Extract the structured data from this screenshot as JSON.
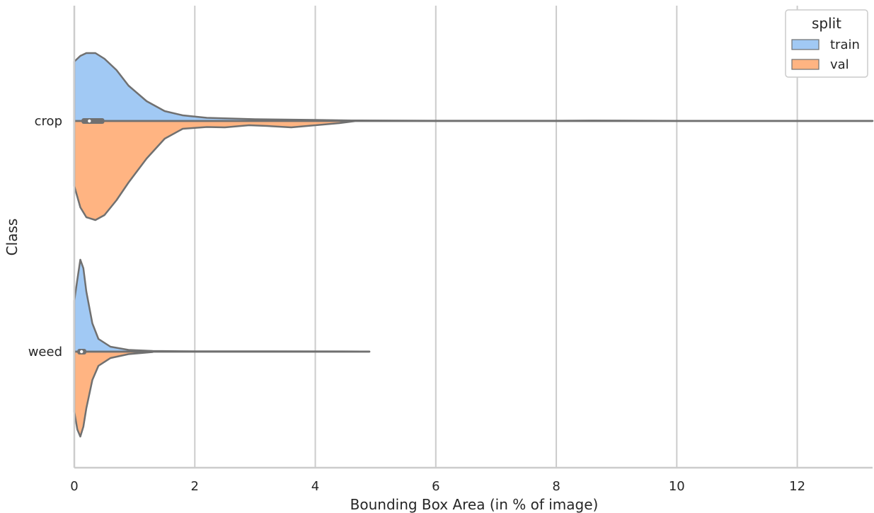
{
  "chart_data": {
    "type": "violin",
    "split_by": "split",
    "xlabel": "Bounding Box Area (in % of image)",
    "ylabel": "Class",
    "xlim": [
      0,
      13.25
    ],
    "xticks": [
      0,
      2,
      4,
      6,
      8,
      10,
      12
    ],
    "grid": "vertical",
    "legend": {
      "title": "split",
      "placement": "top-right",
      "entries": [
        {
          "name": "train",
          "color": "#a1c9f4"
        },
        {
          "name": "val",
          "color": "#ffb482"
        }
      ]
    },
    "categories": [
      "crop",
      "weed"
    ],
    "violins": [
      {
        "category": "crop",
        "train": {
          "min": 0,
          "max": 13.25,
          "q1": 0.12,
          "median": 0.25,
          "q3": 0.5,
          "density": [
            [
              0,
              0.84
            ],
            [
              0.1,
              0.92
            ],
            [
              0.2,
              0.96
            ],
            [
              0.35,
              0.96
            ],
            [
              0.5,
              0.88
            ],
            [
              0.7,
              0.72
            ],
            [
              0.9,
              0.5
            ],
            [
              1.2,
              0.28
            ],
            [
              1.5,
              0.14
            ],
            [
              1.8,
              0.08
            ],
            [
              2.2,
              0.045
            ],
            [
              3,
              0.025
            ],
            [
              4,
              0.015
            ],
            [
              4.6,
              0.008
            ],
            [
              6,
              0.004
            ],
            [
              8,
              0.004
            ],
            [
              8.6,
              0.006
            ],
            [
              10,
              0.003
            ],
            [
              13.25,
              0.002
            ]
          ]
        },
        "val": {
          "min": 0,
          "max": 4.65,
          "density": [
            [
              0,
              0.92
            ],
            [
              0.1,
              1.22
            ],
            [
              0.2,
              1.36
            ],
            [
              0.35,
              1.4
            ],
            [
              0.5,
              1.33
            ],
            [
              0.7,
              1.12
            ],
            [
              0.9,
              0.87
            ],
            [
              1.2,
              0.53
            ],
            [
              1.5,
              0.25
            ],
            [
              1.8,
              0.11
            ],
            [
              2.2,
              0.085
            ],
            [
              2.5,
              0.09
            ],
            [
              2.9,
              0.06
            ],
            [
              3.2,
              0.07
            ],
            [
              3.6,
              0.09
            ],
            [
              4.0,
              0.06
            ],
            [
              4.4,
              0.03
            ],
            [
              4.65,
              0.002
            ]
          ]
        }
      },
      {
        "category": "weed",
        "train": {
          "min": 0,
          "max": 4.9,
          "q1": 0.05,
          "median": 0.12,
          "q3": 0.2,
          "density": [
            [
              0,
              0.72
            ],
            [
              0.05,
              1.02
            ],
            [
              0.1,
              1.3
            ],
            [
              0.15,
              1.18
            ],
            [
              0.2,
              0.85
            ],
            [
              0.3,
              0.4
            ],
            [
              0.4,
              0.18
            ],
            [
              0.6,
              0.07
            ],
            [
              0.9,
              0.025
            ],
            [
              1.3,
              0.01
            ],
            [
              2,
              0.005
            ],
            [
              4.5,
              0.004
            ],
            [
              4.9,
              0.002
            ]
          ]
        },
        "val": {
          "min": 0,
          "max": 1.3,
          "density": [
            [
              0,
              0.85
            ],
            [
              0.05,
              1.1
            ],
            [
              0.1,
              1.2
            ],
            [
              0.15,
              1.06
            ],
            [
              0.2,
              0.8
            ],
            [
              0.3,
              0.4
            ],
            [
              0.4,
              0.2
            ],
            [
              0.6,
              0.09
            ],
            [
              0.9,
              0.035
            ],
            [
              1.3,
              0.005
            ]
          ]
        }
      }
    ]
  }
}
